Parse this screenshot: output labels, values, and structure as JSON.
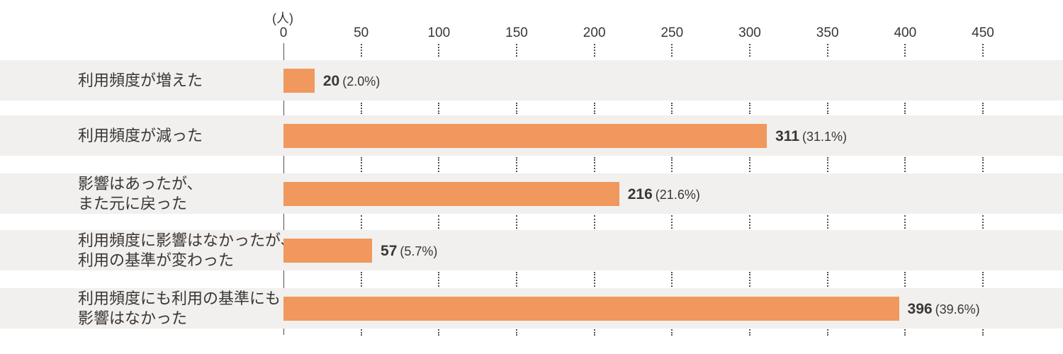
{
  "chart_data": {
    "type": "bar",
    "orientation": "horizontal",
    "title": "",
    "unit_label": "(人)",
    "categories": [
      "利用頻度が増えた",
      "利用頻度が減った",
      "影響はあったが、\nまた元に戻った",
      "利用頻度に影響はなかったが、\n利用の基準が変わった",
      "利用頻度にも利用の基準にも\n影響はなかった"
    ],
    "values": [
      20,
      311,
      216,
      57,
      396
    ],
    "value_labels": [
      "20",
      "311",
      "216",
      "57",
      "396"
    ],
    "percent_labels": [
      "(2.0%)",
      "(31.1%)",
      "(21.6%)",
      "(5.7%)",
      "(39.6%)"
    ],
    "x_ticks": [
      0,
      50,
      100,
      150,
      200,
      250,
      300,
      350,
      400,
      450
    ],
    "xlim": [
      0,
      500
    ],
    "grid": "dotted vertical tick marks between row bands",
    "legend": "none",
    "colors": {
      "bar": "#F0985D",
      "band_background": "#F1F0EE",
      "text": "#3B3633",
      "axis_line": "#55514E",
      "tick_dots": "#55514E"
    }
  }
}
